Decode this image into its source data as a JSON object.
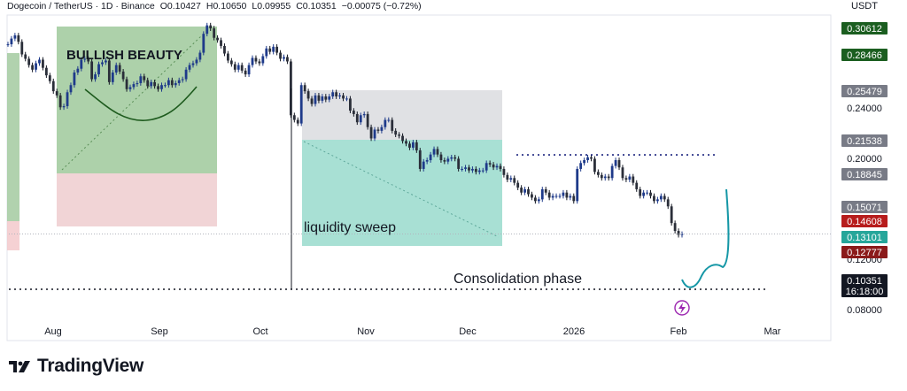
{
  "header": {
    "symbol": "Dogecoin / TetherUS · 1D · Binance",
    "open": "O0.10427",
    "high": "H0.10650",
    "low": "L0.09955",
    "close": "C0.10351",
    "change": "−0.00075 (−0.72%)"
  },
  "unit": "USDT",
  "brand": "TradingView",
  "chart_data": {
    "type": "candlestick",
    "x_tick_labels": [
      "Aug",
      "Sep",
      "Oct",
      "Nov",
      "Dec",
      "2026",
      "Feb",
      "Mar"
    ],
    "y_tick_labels": [
      "0.24000",
      "0.20000",
      "0.12000",
      "0.08000"
    ],
    "price_labels": [
      {
        "text": "0.30612",
        "value": 0.30612,
        "color": "#1b5e20"
      },
      {
        "text": "0.28466",
        "value": 0.28466,
        "color": "#1b5e20"
      },
      {
        "text": "0.25479",
        "value": 0.25479,
        "color": "#787b86"
      },
      {
        "text": "0.21538",
        "value": 0.21538,
        "color": "#787b86"
      },
      {
        "text": "0.18845",
        "value": 0.18845,
        "color": "#787b86"
      },
      {
        "text": "0.15071",
        "value": 0.15071,
        "color": "#787b86"
      },
      {
        "text": "0.14608",
        "value": 0.14608,
        "color": "#b71c1c"
      },
      {
        "text": "0.13101",
        "value": 0.13101,
        "color": "#26a69a"
      },
      {
        "text": "0.12777",
        "value": 0.12777,
        "color": "#8b1a1a"
      }
    ],
    "last_price": {
      "price": "0.10351",
      "countdown": "16:18:00",
      "value": 0.10351
    },
    "annotations": [
      "BULLISH BEAUTY",
      "liquidity sweep",
      "Consolidation phase"
    ],
    "closes": [
      0.255,
      0.262,
      0.266,
      0.258,
      0.243,
      0.238,
      0.231,
      0.226,
      0.233,
      0.237,
      0.228,
      0.22,
      0.214,
      0.204,
      0.2,
      0.189,
      0.19,
      0.203,
      0.21,
      0.223,
      0.227,
      0.237,
      0.238,
      0.235,
      0.216,
      0.221,
      0.232,
      0.234,
      0.236,
      0.213,
      0.223,
      0.231,
      0.224,
      0.216,
      0.206,
      0.208,
      0.211,
      0.212,
      0.219,
      0.215,
      0.209,
      0.213,
      0.209,
      0.206,
      0.21,
      0.21,
      0.215,
      0.21,
      0.212,
      0.215,
      0.216,
      0.226,
      0.231,
      0.233,
      0.237,
      0.245,
      0.268,
      0.279,
      0.275,
      0.263,
      0.26,
      0.253,
      0.244,
      0.236,
      0.232,
      0.226,
      0.231,
      0.225,
      0.221,
      0.231,
      0.239,
      0.235,
      0.233,
      0.241,
      0.25,
      0.246,
      0.252,
      0.245,
      0.238,
      0.24,
      0.235,
      0.182,
      0.178,
      0.175,
      0.21,
      0.204,
      0.197,
      0.192,
      0.2,
      0.195,
      0.199,
      0.196,
      0.199,
      0.203,
      0.199,
      0.2,
      0.197,
      0.197,
      0.186,
      0.183,
      0.176,
      0.182,
      0.183,
      0.172,
      0.163,
      0.17,
      0.169,
      0.172,
      0.178,
      0.178,
      0.169,
      0.166,
      0.165,
      0.161,
      0.159,
      0.156,
      0.16,
      0.154,
      0.141,
      0.146,
      0.147,
      0.151,
      0.155,
      0.151,
      0.147,
      0.146,
      0.148,
      0.149,
      0.148,
      0.141,
      0.141,
      0.142,
      0.14,
      0.141,
      0.139,
      0.14,
      0.14,
      0.145,
      0.144,
      0.142,
      0.143,
      0.141,
      0.137,
      0.134,
      0.135,
      0.132,
      0.129,
      0.126,
      0.128,
      0.125,
      0.123,
      0.121,
      0.122,
      0.128,
      0.126,
      0.123,
      0.124,
      0.124,
      0.124,
      0.126,
      0.123,
      0.124,
      0.121,
      0.141,
      0.145,
      0.147,
      0.149,
      0.148,
      0.139,
      0.137,
      0.135,
      0.136,
      0.135,
      0.143,
      0.147,
      0.142,
      0.135,
      0.134,
      0.136,
      0.132,
      0.128,
      0.124,
      0.126,
      0.126,
      0.124,
      0.121,
      0.122,
      0.124,
      0.122,
      0.118,
      0.109,
      0.105,
      0.103,
      0.10351
    ],
    "projection": [
      0.104,
      0.099,
      0.1,
      0.11,
      0.115,
      0.111,
      0.116,
      0.134,
      0.16,
      0.18
    ]
  }
}
